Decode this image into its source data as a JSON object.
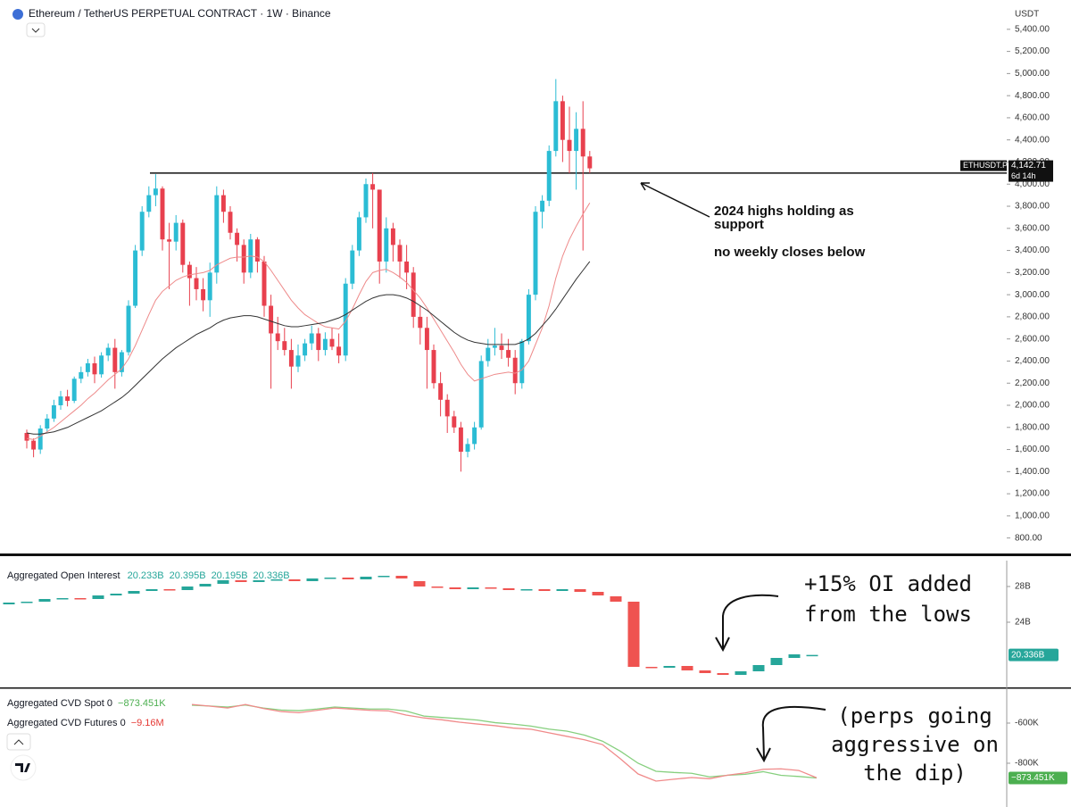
{
  "chart_data": [
    {
      "type": "candlestick",
      "title": "Ethereum / TetherUS PERPETUAL CONTRACT · 1W · Binance",
      "axis_label": "USDT",
      "symbol": "ETHUSDT.P",
      "countdown": "6d 14h",
      "up_color": "#2bbcd4",
      "down_color": "#e8404e",
      "open": [
        1750,
        1680,
        1600,
        1790,
        1880,
        2000,
        2080,
        2040,
        2240,
        2300,
        2380,
        2280,
        2450,
        2520,
        2300,
        2480,
        2900,
        3400,
        3750,
        3900,
        3960,
        3500,
        3480,
        3650,
        3270,
        3150,
        3050,
        2950,
        3200,
        3900,
        3750,
        3560,
        3450,
        3200,
        3500,
        3300,
        2900,
        2650,
        2580,
        2500,
        2350,
        2450,
        2560,
        2650,
        2500,
        2600,
        2530,
        2450,
        3100,
        3400,
        3700,
        4000,
        3950,
        3300,
        3600,
        3450,
        3300,
        3200,
        2800,
        2700,
        2500,
        2200,
        2050,
        1900,
        1800,
        1580,
        1650,
        1800,
        2400,
        2520,
        2540,
        2500,
        2430,
        2200,
        2580,
        3000,
        3750,
        3850,
        4300,
        4750,
        4400,
        4300,
        4500,
        4250
      ],
      "high": [
        1780,
        1700,
        1820,
        1920,
        2050,
        2130,
        2140,
        2260,
        2350,
        2420,
        2440,
        2480,
        2560,
        2600,
        2500,
        2950,
        3450,
        3800,
        3980,
        4090,
        3980,
        3650,
        3720,
        3680,
        3300,
        3250,
        3150,
        3290,
        3980,
        3950,
        3800,
        3600,
        3500,
        3550,
        3520,
        3350,
        3000,
        2800,
        2700,
        2600,
        2550,
        2600,
        2720,
        2700,
        2660,
        2700,
        2650,
        3150,
        3450,
        3750,
        4050,
        4100,
        3950,
        3700,
        3650,
        3500,
        3450,
        3250,
        2900,
        2800,
        2550,
        2300,
        2100,
        1950,
        1850,
        1700,
        1850,
        2450,
        2600,
        2700,
        2650,
        2600,
        2500,
        2600,
        3050,
        3800,
        3900,
        4350,
        4950,
        4800,
        4700,
        4650,
        4750,
        4300
      ],
      "low": [
        1610,
        1530,
        1560,
        1760,
        1850,
        1960,
        1990,
        2020,
        2200,
        2260,
        2200,
        2250,
        2400,
        2150,
        2260,
        2450,
        2880,
        3350,
        3700,
        3800,
        3400,
        3050,
        3400,
        3200,
        2900,
        2950,
        2850,
        2800,
        3100,
        3650,
        3500,
        3300,
        3100,
        3150,
        3200,
        2800,
        2150,
        2500,
        2450,
        2150,
        2300,
        2400,
        2500,
        2400,
        2450,
        2500,
        2380,
        2400,
        3050,
        3350,
        3650,
        3600,
        3100,
        3200,
        3300,
        3150,
        3050,
        2700,
        2550,
        2150,
        2150,
        1900,
        1750,
        1750,
        1400,
        1530,
        1600,
        1780,
        2350,
        2450,
        2420,
        2350,
        2100,
        2150,
        2550,
        2950,
        3600,
        3800,
        4250,
        4200,
        4100,
        3950,
        3400,
        4100
      ],
      "close": [
        1680,
        1600,
        1790,
        1880,
        2000,
        2080,
        2040,
        2240,
        2300,
        2380,
        2280,
        2450,
        2520,
        2300,
        2480,
        2900,
        3400,
        3750,
        3900,
        3960,
        3500,
        3480,
        3650,
        3270,
        3150,
        3050,
        2950,
        3200,
        3900,
        3750,
        3560,
        3450,
        3200,
        3500,
        3300,
        2900,
        2650,
        2580,
        2500,
        2350,
        2450,
        2560,
        2650,
        2500,
        2600,
        2530,
        2450,
        3100,
        3400,
        3700,
        4000,
        3950,
        3300,
        3600,
        3450,
        3300,
        3200,
        2800,
        2700,
        2500,
        2200,
        2050,
        1900,
        1800,
        1580,
        1650,
        1800,
        2400,
        2520,
        2540,
        2500,
        2430,
        2200,
        2580,
        3000,
        3750,
        3850,
        4300,
        4750,
        4400,
        4300,
        4500,
        4250,
        4142.71
      ],
      "close_label": "4,142.71",
      "lines": [
        {
          "color": "#ee8a8a",
          "values": [
            1700,
            1690,
            1720,
            1760,
            1800,
            1850,
            1900,
            1950,
            2000,
            2060,
            2110,
            2170,
            2230,
            2280,
            2330,
            2420,
            2540,
            2680,
            2820,
            2950,
            3030,
            3080,
            3130,
            3160,
            3180,
            3190,
            3200,
            3220,
            3270,
            3300,
            3330,
            3340,
            3340,
            3350,
            3340,
            3300,
            3220,
            3130,
            3040,
            2950,
            2880,
            2820,
            2780,
            2740,
            2710,
            2700,
            2690,
            2760,
            2870,
            3000,
            3120,
            3200,
            3220,
            3230,
            3200,
            3160,
            3110,
            3040,
            2970,
            2880,
            2780,
            2680,
            2580,
            2480,
            2370,
            2280,
            2220,
            2240,
            2260,
            2280,
            2290,
            2300,
            2290,
            2320,
            2400,
            2550,
            2700,
            2900,
            3150,
            3350,
            3500,
            3620,
            3730,
            3830
          ]
        },
        {
          "color": "#333333",
          "values": [
            1750,
            1740,
            1740,
            1750,
            1760,
            1780,
            1800,
            1830,
            1860,
            1890,
            1920,
            1950,
            1990,
            2030,
            2070,
            2120,
            2180,
            2240,
            2300,
            2360,
            2420,
            2470,
            2520,
            2560,
            2600,
            2640,
            2670,
            2700,
            2740,
            2770,
            2790,
            2800,
            2810,
            2810,
            2800,
            2780,
            2760,
            2740,
            2720,
            2710,
            2710,
            2720,
            2730,
            2740,
            2750,
            2770,
            2790,
            2820,
            2860,
            2900,
            2940,
            2970,
            2990,
            3000,
            3000,
            2990,
            2970,
            2940,
            2900,
            2860,
            2810,
            2760,
            2710,
            2660,
            2620,
            2590,
            2570,
            2560,
            2550,
            2550,
            2550,
            2550,
            2550,
            2570,
            2600,
            2650,
            2720,
            2790,
            2870,
            2960,
            3050,
            3140,
            3220,
            3300
          ]
        }
      ],
      "support_level": 4100,
      "annotations": [
        [
          "2024 highs holding as",
          "support"
        ],
        [
          "no weekly closes below"
        ]
      ],
      "ylim": [
        660,
        5665
      ],
      "yticks": [
        {
          "value": 800,
          "label": "800.00"
        },
        {
          "value": 1000,
          "label": "1,000.00"
        },
        {
          "value": 1200,
          "label": "1,200.00"
        },
        {
          "value": 1400,
          "label": "1,400.00"
        },
        {
          "value": 1600,
          "label": "1,600.00"
        },
        {
          "value": 1800,
          "label": "1,800.00"
        },
        {
          "value": 2000,
          "label": "2,000.00"
        },
        {
          "value": 2200,
          "label": "2,200.00"
        },
        {
          "value": 2400,
          "label": "2,400.00"
        },
        {
          "value": 2600,
          "label": "2,600.00"
        },
        {
          "value": 2800,
          "label": "2,800.00"
        },
        {
          "value": 3000,
          "label": "3,000.00"
        },
        {
          "value": 3200,
          "label": "3,200.00"
        },
        {
          "value": 3400,
          "label": "3,400.00"
        },
        {
          "value": 3600,
          "label": "3,600.00"
        },
        {
          "value": 3800,
          "label": "3,800.00"
        },
        {
          "value": 4000,
          "label": "4,000.00"
        },
        {
          "value": 4200,
          "label": "4,200.00"
        },
        {
          "value": 4400,
          "label": "4,400.00"
        },
        {
          "value": 4600,
          "label": "4,600.00"
        },
        {
          "value": 4800,
          "label": "4,800.00"
        },
        {
          "value": 5000,
          "label": "5,000.00"
        },
        {
          "value": 5200,
          "label": "5,200.00"
        },
        {
          "value": 5400,
          "label": "5,400.00"
        }
      ]
    },
    {
      "type": "candlestick",
      "title": "Aggregated Open Interest",
      "up_color": "#26a69a",
      "down_color": "#ef5350",
      "open": [
        26.0,
        26.2,
        26.3,
        26.6,
        26.7,
        26.6,
        27.0,
        27.2,
        27.5,
        27.7,
        27.6,
        28.0,
        28.3,
        28.7,
        28.5,
        28.7,
        28.8,
        28.6,
        28.9,
        29.0,
        28.8,
        29.1,
        29.2,
        28.6,
        28.0,
        27.9,
        27.7,
        27.9,
        27.8,
        27.6,
        27.7,
        27.5,
        27.7,
        27.4,
        26.9,
        26.3,
        19.0,
        18.9,
        19.1,
        18.6,
        18.3,
        18.1,
        18.5,
        19.2,
        20.0,
        20.233
      ],
      "close": [
        26.2,
        26.3,
        26.6,
        26.7,
        26.6,
        27.0,
        27.2,
        27.5,
        27.7,
        27.6,
        28.0,
        28.3,
        28.7,
        28.5,
        28.7,
        28.8,
        28.6,
        28.9,
        29.0,
        28.8,
        29.1,
        29.2,
        28.9,
        28.0,
        27.9,
        27.7,
        27.9,
        27.8,
        27.6,
        27.7,
        27.5,
        27.7,
        27.4,
        27.0,
        26.3,
        19.0,
        18.9,
        19.1,
        18.6,
        18.3,
        18.1,
        18.5,
        19.2,
        20.0,
        20.4,
        20.336
      ],
      "last_ohlc": {
        "values": [
          20.233,
          20.395,
          20.195,
          20.336
        ],
        "value_labels": [
          "20.233B",
          "20.395B",
          "20.195B",
          "20.336B"
        ]
      },
      "annotations": [
        [
          "+15% OI added",
          "from the lows"
        ]
      ],
      "ylim": [
        16.7,
        30.9
      ],
      "yticks": [
        {
          "value": 28,
          "label": "28B"
        },
        {
          "value": 24,
          "label": "24B"
        }
      ]
    },
    {
      "type": "line",
      "series": [
        {
          "name": "Aggregated CVD Spot 0",
          "color": "#86cf7e",
          "value_label": "−873.451K",
          "values": [
            -511000,
            -515000,
            -520000,
            -510000,
            -525000,
            -535000,
            -538000,
            -530000,
            -520000,
            -525000,
            -530000,
            -530000,
            -540000,
            -565000,
            -572000,
            -578000,
            -585000,
            -598000,
            -605000,
            -615000,
            -630000,
            -640000,
            -660000,
            -690000,
            -740000,
            -800000,
            -840000,
            -846000,
            -850000,
            -868000,
            -860000,
            -855000,
            -842000,
            -860000,
            -866000,
            -873451
          ]
        },
        {
          "name": "Aggregated CVD Futures 0",
          "color": "#f08a8a",
          "value_label": "−9.16M",
          "axis": "y2",
          "values": [
            -6050000,
            -6120000,
            -6200000,
            -6050000,
            -6220000,
            -6350000,
            -6400000,
            -6300000,
            -6200000,
            -6250000,
            -6300000,
            -6320000,
            -6500000,
            -6620000,
            -6700000,
            -6800000,
            -6880000,
            -6950000,
            -7050000,
            -7100000,
            -7250000,
            -7400000,
            -7550000,
            -7750000,
            -8350000,
            -9000000,
            -9300000,
            -9220000,
            -9150000,
            -9200000,
            -9050000,
            -8950000,
            -8800000,
            -8780000,
            -8850000,
            -9160000
          ]
        }
      ],
      "annotations": [
        [
          "(perps going",
          "aggressive on",
          "the dip)"
        ]
      ],
      "ylim": [
        -1018000,
        -431000
      ],
      "yticks": [
        {
          "value": -600000,
          "label": "-600K"
        },
        {
          "value": -800000,
          "label": "-800K"
        }
      ],
      "y2lim": [
        -10400000,
        -5400000
      ]
    }
  ]
}
